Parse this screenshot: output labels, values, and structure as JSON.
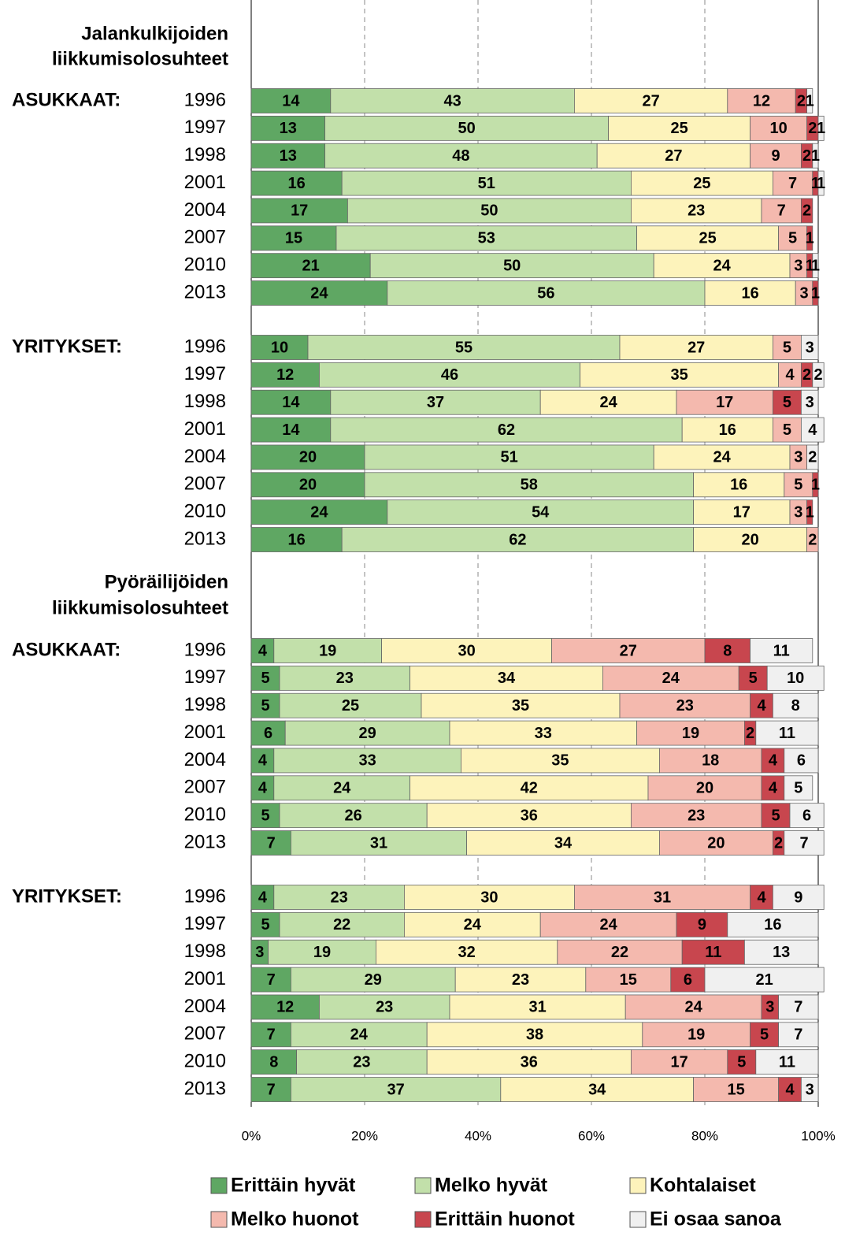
{
  "chart_data": {
    "type": "bar",
    "orientation": "horizontal",
    "stacked": true,
    "xlim": [
      0,
      100
    ],
    "xticks": [
      {
        "value": 0,
        "label": "0%"
      },
      {
        "value": 20,
        "label": "20%"
      },
      {
        "value": 40,
        "label": "40%"
      },
      {
        "value": 60,
        "label": "60%"
      },
      {
        "value": 80,
        "label": "80%"
      },
      {
        "value": 100,
        "label": "100%"
      }
    ],
    "grid": true,
    "legend": "bottom",
    "series": [
      {
        "name": "Erittäin hyvät",
        "color": "#5fa763"
      },
      {
        "name": "Melko hyvät",
        "color": "#c2e0aa"
      },
      {
        "name": "Kohtalaiset",
        "color": "#fdf3bb"
      },
      {
        "name": "Melko huonot",
        "color": "#f4b9ae"
      },
      {
        "name": "Erittäin huonot",
        "color": "#c8464e"
      },
      {
        "name": "Ei osaa sanoa",
        "color": "#f0f0f0"
      }
    ],
    "sections": [
      {
        "title": [
          "Jalankulkijoiden",
          "liikkumisolosuhteet"
        ],
        "groups": [
          {
            "label": "ASUKKAAT:",
            "categories": [
              "1996",
              "1997",
              "1998",
              "2001",
              "2004",
              "2007",
              "2010",
              "2013"
            ],
            "values": [
              [
                14,
                13,
                13,
                16,
                17,
                15,
                21,
                24
              ],
              [
                43,
                50,
                48,
                51,
                50,
                53,
                50,
                56
              ],
              [
                27,
                25,
                27,
                25,
                23,
                25,
                24,
                16
              ],
              [
                12,
                10,
                9,
                7,
                7,
                5,
                3,
                3
              ],
              [
                2,
                2,
                2,
                1,
                2,
                1,
                1,
                1
              ],
              [
                1,
                1,
                1,
                1,
                null,
                null,
                1,
                null
              ]
            ]
          },
          {
            "label": "YRITYKSET:",
            "categories": [
              "1996",
              "1997",
              "1998",
              "2001",
              "2004",
              "2007",
              "2010",
              "2013"
            ],
            "values": [
              [
                10,
                12,
                14,
                14,
                20,
                20,
                24,
                16
              ],
              [
                55,
                46,
                37,
                62,
                51,
                58,
                54,
                62
              ],
              [
                27,
                35,
                24,
                16,
                24,
                16,
                17,
                20
              ],
              [
                5,
                4,
                17,
                5,
                3,
                5,
                3,
                2
              ],
              [
                null,
                2,
                5,
                null,
                null,
                1,
                1,
                null
              ],
              [
                3,
                2,
                3,
                4,
                2,
                null,
                null,
                null
              ]
            ]
          }
        ]
      },
      {
        "title": [
          "Pyöräilijöiden",
          "liikkumisolosuhteet"
        ],
        "groups": [
          {
            "label": "ASUKKAAT:",
            "categories": [
              "1996",
              "1997",
              "1998",
              "2001",
              "2004",
              "2007",
              "2010",
              "2013"
            ],
            "values": [
              [
                4,
                5,
                5,
                6,
                4,
                4,
                5,
                7
              ],
              [
                19,
                23,
                25,
                29,
                33,
                24,
                26,
                31
              ],
              [
                30,
                34,
                35,
                33,
                35,
                42,
                36,
                34
              ],
              [
                27,
                24,
                23,
                19,
                18,
                20,
                23,
                20
              ],
              [
                8,
                5,
                4,
                2,
                4,
                4,
                5,
                2
              ],
              [
                11,
                10,
                8,
                11,
                6,
                5,
                6,
                7
              ]
            ]
          },
          {
            "label": "YRITYKSET:",
            "categories": [
              "1996",
              "1997",
              "1998",
              "2001",
              "2004",
              "2007",
              "2010",
              "2013"
            ],
            "values": [
              [
                4,
                5,
                3,
                7,
                12,
                7,
                8,
                7
              ],
              [
                23,
                22,
                19,
                29,
                23,
                24,
                23,
                37
              ],
              [
                30,
                24,
                32,
                23,
                31,
                38,
                36,
                34
              ],
              [
                31,
                24,
                22,
                15,
                24,
                19,
                17,
                15
              ],
              [
                4,
                9,
                11,
                6,
                3,
                5,
                5,
                4
              ],
              [
                9,
                16,
                13,
                21,
                7,
                7,
                11,
                3
              ]
            ]
          }
        ]
      }
    ]
  }
}
